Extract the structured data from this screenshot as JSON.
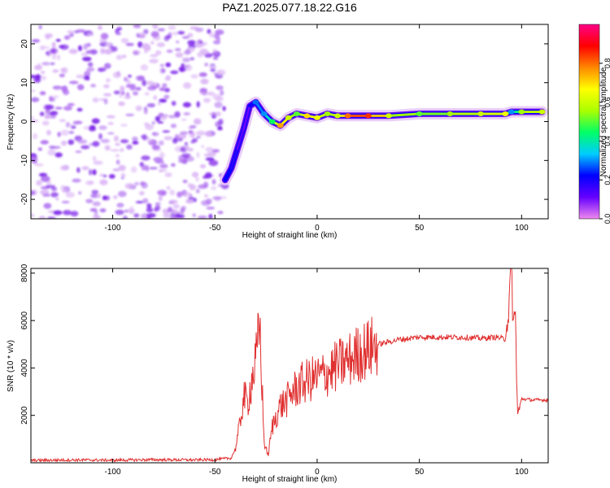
{
  "figure": {
    "title": "PAZ1.2025.077.18.22.G16"
  },
  "chart_data": [
    {
      "type": "heatmap",
      "xlabel": "Height of straight line (km)",
      "ylabel": "Frequency (Hz)",
      "xlim": [
        -140,
        113
      ],
      "ylim": [
        -25,
        25
      ],
      "x_ticks": [
        -100,
        -50,
        0,
        50,
        100
      ],
      "y_ticks": [
        -20,
        -10,
        0,
        10,
        20
      ],
      "colorbar": {
        "label": "Normalized spectral amplitude",
        "range": [
          0,
          1
        ],
        "ticks": [
          0.0,
          0.2,
          0.4,
          0.6,
          0.8
        ],
        "colormap": [
          "#ee88ee",
          "#6600ff",
          "#0000ff",
          "#00ccff",
          "#00ff66",
          "#aaff00",
          "#ffff00",
          "#ff8800",
          "#ff0000",
          "#ff0088"
        ]
      },
      "ridge": [
        {
          "x": -45,
          "y": -15,
          "amp": 0.22
        },
        {
          "x": -42,
          "y": -12,
          "amp": 0.2
        },
        {
          "x": -39,
          "y": -7,
          "amp": 0.15
        },
        {
          "x": -36,
          "y": -2,
          "amp": 0.1
        },
        {
          "x": -33,
          "y": 4,
          "amp": 0.12
        },
        {
          "x": -30,
          "y": 5,
          "amp": 0.28
        },
        {
          "x": -26,
          "y": 2,
          "amp": 0.3
        },
        {
          "x": -22,
          "y": 0,
          "amp": 0.45
        },
        {
          "x": -18,
          "y": -1,
          "amp": 0.75
        },
        {
          "x": -14,
          "y": 1,
          "amp": 0.6
        },
        {
          "x": -10,
          "y": 2,
          "amp": 0.5
        },
        {
          "x": -5,
          "y": 1.5,
          "amp": 0.7
        },
        {
          "x": 0,
          "y": 1,
          "amp": 0.65
        },
        {
          "x": 5,
          "y": 2,
          "amp": 0.55
        },
        {
          "x": 10,
          "y": 1.5,
          "amp": 0.6
        },
        {
          "x": 15,
          "y": 1.5,
          "amp": 0.8
        },
        {
          "x": 25,
          "y": 1.5,
          "amp": 0.85
        },
        {
          "x": 35,
          "y": 1.5,
          "amp": 0.6
        },
        {
          "x": 50,
          "y": 2,
          "amp": 0.5
        },
        {
          "x": 65,
          "y": 2,
          "amp": 0.55
        },
        {
          "x": 80,
          "y": 2,
          "amp": 0.6
        },
        {
          "x": 92,
          "y": 2,
          "amp": 0.65
        },
        {
          "x": 95,
          "y": 2.5,
          "amp": 0.3
        },
        {
          "x": 100,
          "y": 2.5,
          "amp": 0.55
        },
        {
          "x": 110,
          "y": 2.5,
          "amp": 0.6
        }
      ],
      "noise_region": {
        "x_from": -140,
        "x_to": -45,
        "amp": 0.05
      }
    },
    {
      "type": "line",
      "xlabel": "Height of straight line (km)",
      "ylabel": "SNR (10 * v/v)",
      "xlim": [
        -140,
        113
      ],
      "ylim": [
        0,
        8200
      ],
      "x_ticks": [
        -100,
        -50,
        0,
        50,
        100
      ],
      "y_ticks": [
        2000,
        4000,
        6000,
        8000
      ],
      "series": [
        {
          "color": "#e03030",
          "x": [
            -140,
            -120,
            -100,
            -80,
            -60,
            -50,
            -42,
            -40,
            -38,
            -36,
            -34,
            -32,
            -30,
            -28,
            -26,
            -24,
            -22,
            -20,
            -18,
            -15,
            -12,
            -8,
            -4,
            0,
            5,
            10,
            15,
            20,
            25,
            30,
            35,
            40,
            50,
            60,
            70,
            80,
            88,
            92,
            94,
            95,
            96,
            97,
            98,
            100,
            105,
            113
          ],
          "y": [
            100,
            120,
            110,
            130,
            120,
            130,
            200,
            600,
            1500,
            2800,
            2500,
            3500,
            4200,
            5800,
            900,
            300,
            1500,
            2000,
            2400,
            2600,
            3000,
            3300,
            3500,
            3600,
            3800,
            4100,
            4300,
            4600,
            4800,
            5000,
            5100,
            5200,
            5300,
            5300,
            5300,
            5250,
            5300,
            5200,
            6800,
            8100,
            5800,
            6200,
            2000,
            2700,
            2650,
            2650
          ]
        }
      ]
    }
  ]
}
